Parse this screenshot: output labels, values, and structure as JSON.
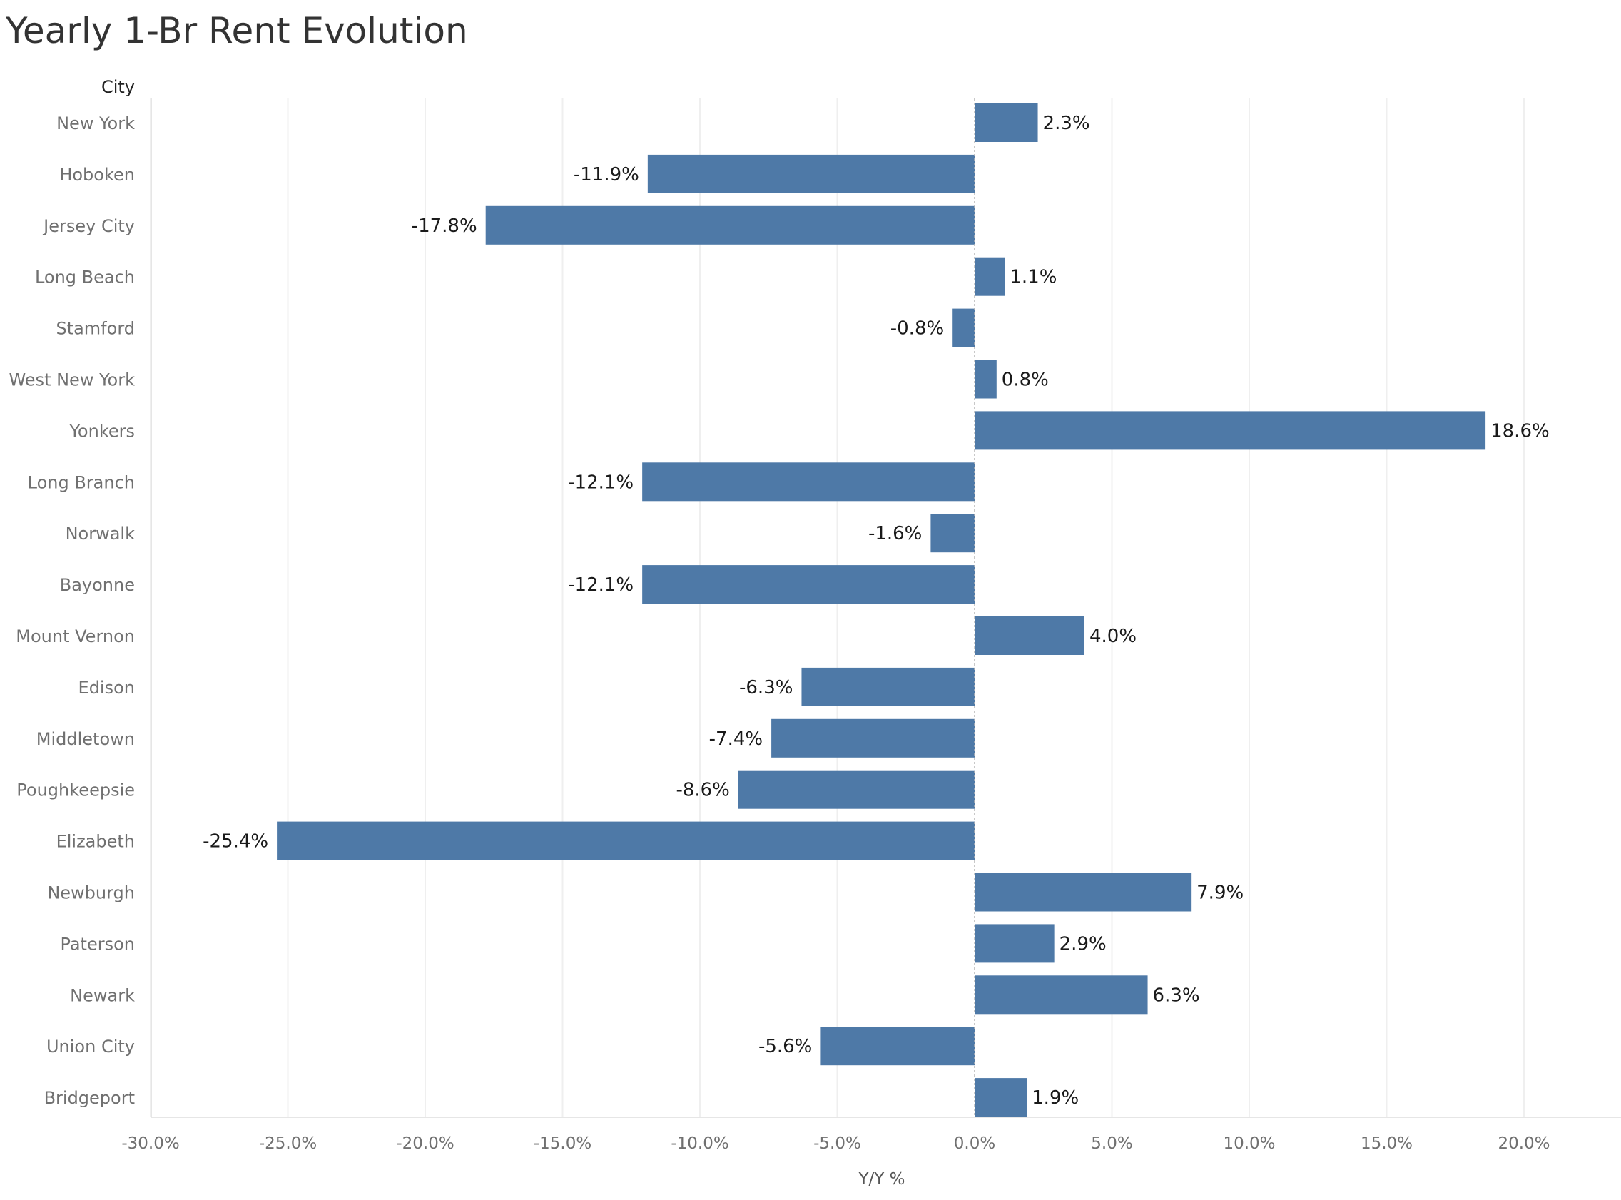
{
  "chart_data": {
    "type": "bar",
    "orientation": "horizontal",
    "title": "Yearly 1-Br Rent Evolution",
    "row_header": "City",
    "xlabel": "Y/Y %",
    "ylabel": "",
    "xlim": [
      -30,
      22
    ],
    "xticks": [
      -30,
      -25,
      -20,
      -15,
      -10,
      -5,
      0,
      5,
      10,
      15,
      20
    ],
    "xtick_labels": [
      "-30.0%",
      "-25.0%",
      "-20.0%",
      "-15.0%",
      "-10.0%",
      "-5.0%",
      "0.0%",
      "5.0%",
      "10.0%",
      "15.0%",
      "20.0%"
    ],
    "grid": "vertical",
    "bar_color": "#4e79a7",
    "categories": [
      "New York",
      "Hoboken",
      "Jersey City",
      "Long Beach",
      "Stamford",
      "West New York",
      "Yonkers",
      "Long Branch",
      "Norwalk",
      "Bayonne",
      "Mount Vernon",
      "Edison",
      "Middletown",
      "Poughkeepsie",
      "Elizabeth",
      "Newburgh",
      "Paterson",
      "Newark",
      "Union City",
      "Bridgeport"
    ],
    "values": [
      2.3,
      -11.9,
      -17.8,
      1.1,
      -0.8,
      0.8,
      18.6,
      -12.1,
      -1.6,
      -12.1,
      4.0,
      -6.3,
      -7.4,
      -8.6,
      -25.4,
      7.9,
      2.9,
      6.3,
      -5.6,
      1.9
    ],
    "value_labels": [
      "2.3%",
      "-11.9%",
      "-17.8%",
      "1.1%",
      "-0.8%",
      "0.8%",
      "18.6%",
      "-12.1%",
      "-1.6%",
      "-12.1%",
      "4.0%",
      "-6.3%",
      "-7.4%",
      "-8.6%",
      "-25.4%",
      "7.9%",
      "2.9%",
      "6.3%",
      "-5.6%",
      "1.9%"
    ]
  }
}
